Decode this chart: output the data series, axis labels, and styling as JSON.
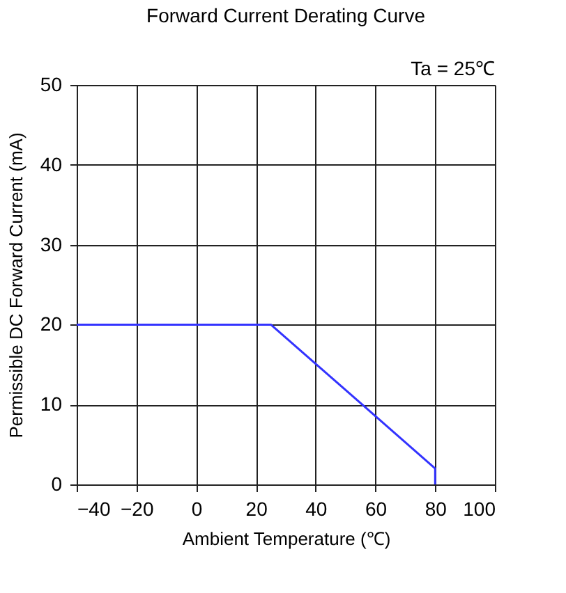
{
  "chart_data": {
    "type": "line",
    "title": "Forward Current Derating Curve",
    "xlabel": "Ambient Temperature (℃)",
    "ylabel": "Permissible DC Forward Current (mA)",
    "annotations": [
      "Ta = 25℃"
    ],
    "series": [
      {
        "color": "#3333ff",
        "x": [
          -40,
          25,
          80,
          80
        ],
        "values": [
          20,
          20,
          2,
          0
        ]
      }
    ],
    "xlim": [
      -40,
      100
    ],
    "xticks": [
      -40,
      -20,
      0,
      20,
      40,
      60,
      80,
      100
    ],
    "ylim": [
      0,
      50
    ],
    "yticks": [
      0,
      10,
      20,
      30,
      40,
      50
    ],
    "grid": true,
    "marker": "none",
    "line_style": "solid"
  }
}
